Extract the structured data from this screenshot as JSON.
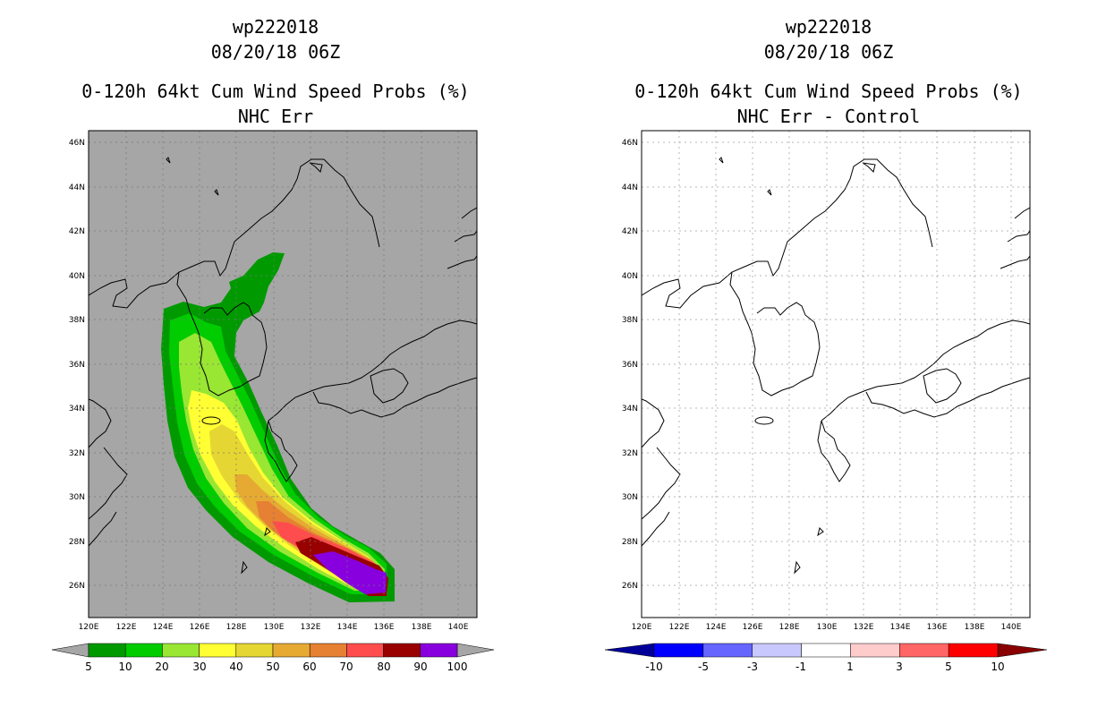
{
  "panels": [
    {
      "storm_id": "wp222018",
      "datetime": "08/20/18 06Z",
      "product": "0-120h 64kt Cum Wind Speed Probs (%)",
      "subtitle": "NHC Err",
      "background": "#a6a6a6"
    },
    {
      "storm_id": "wp222018",
      "datetime": "08/20/18 06Z",
      "product": "0-120h 64kt Cum Wind Speed Probs (%)",
      "subtitle": "NHC Err - Control",
      "background": "#ffffff"
    }
  ],
  "map": {
    "lat_labels": [
      "46N",
      "44N",
      "42N",
      "40N",
      "38N",
      "36N",
      "34N",
      "32N",
      "30N",
      "28N",
      "26N"
    ],
    "lon_labels": [
      "120E",
      "122E",
      "124E",
      "126E",
      "128E",
      "130E",
      "132E",
      "134E",
      "136E",
      "138E",
      "140E"
    ]
  },
  "left_colorbar": {
    "labels": [
      "5",
      "10",
      "20",
      "30",
      "40",
      "50",
      "60",
      "70",
      "80",
      "90",
      "100"
    ],
    "colors": [
      "#009a00",
      "#00cc00",
      "#99e633",
      "#ffff33",
      "#e6d633",
      "#e6aa33",
      "#e68033",
      "#ff4d4d",
      "#990000",
      "#8800dd"
    ],
    "ends": "#a6a6a6"
  },
  "right_colorbar": {
    "labels": [
      "-10",
      "-5",
      "-3",
      "-1",
      "1",
      "3",
      "5",
      "10"
    ],
    "colors": [
      "#0000ff",
      "#6666ff",
      "#c8c8ff",
      "#ffffff",
      "#ffcccc",
      "#ff6666",
      "#ff0000"
    ],
    "low_end": "#000099",
    "high_end": "#880000"
  },
  "chart_data": {
    "type": "heatmap",
    "title": "0-120h 64kt Cum Wind Speed Probs (%)",
    "field_units": "%",
    "lon_range": [
      120,
      141
    ],
    "lat_range": [
      24.8,
      46.6
    ],
    "contour_levels": [
      5,
      10,
      20,
      30,
      40,
      50,
      60,
      70,
      80,
      90,
      100
    ],
    "probability_swath_axis": [
      {
        "lon": 126.0,
        "lat": 37.8
      },
      {
        "lon": 126.3,
        "lat": 35.5
      },
      {
        "lon": 126.8,
        "lat": 33.5
      },
      {
        "lon": 127.7,
        "lat": 31.6
      },
      {
        "lon": 129.4,
        "lat": 29.6
      },
      {
        "lon": 131.6,
        "lat": 28.0
      },
      {
        "lon": 133.8,
        "lat": 26.8
      },
      {
        "lon": 135.8,
        "lat": 26.1
      }
    ],
    "approx_max_prob_region": {
      "lon": [
        133,
        136
      ],
      "lat": [
        25.5,
        27.2
      ],
      "prob": ">90"
    },
    "difference_panel": "NHC Err - Control: no differences shown"
  }
}
